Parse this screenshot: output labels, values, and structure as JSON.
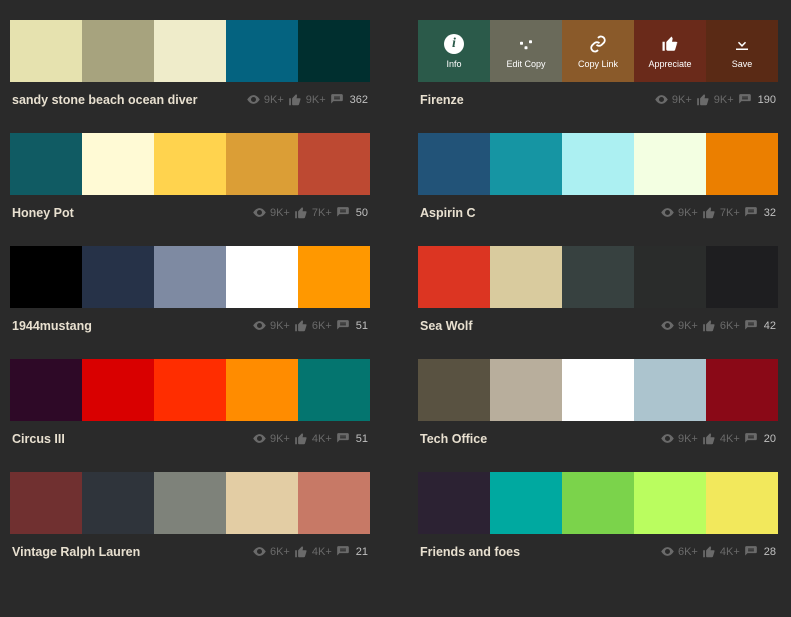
{
  "hover_actions": {
    "info": "Info",
    "edit_copy": "Edit Copy",
    "copy_link": "Copy Link",
    "appreciate": "Appreciate",
    "save": "Save",
    "overlay_bg": [
      "#2b5a4a",
      "#6a6a5a",
      "#8a5a2a",
      "#6a2a1a",
      "#5a2a15"
    ]
  },
  "palettes": [
    {
      "title": "sandy stone beach ocean diver",
      "colors": [
        "#e6e2af",
        "#a7a37e",
        "#efecca",
        "#046380",
        "#002f2f"
      ],
      "views": "9K+",
      "likes": "9K+",
      "comments": "362",
      "hover": false
    },
    {
      "title": "Firenze",
      "colors": [
        "#468966",
        "#fff0a5",
        "#ffb03b",
        "#b64926",
        "#8e2800"
      ],
      "views": "9K+",
      "likes": "9K+",
      "comments": "190",
      "hover": true
    },
    {
      "title": "Honey Pot",
      "colors": [
        "#105b63",
        "#fffad5",
        "#ffd34e",
        "#db9e36",
        "#bd4932"
      ],
      "views": "9K+",
      "likes": "7K+",
      "comments": "50",
      "hover": false
    },
    {
      "title": "Aspirin C",
      "colors": [
        "#225378",
        "#1695a3",
        "#acf0f2",
        "#f3ffe2",
        "#eb7f00"
      ],
      "views": "9K+",
      "likes": "7K+",
      "comments": "32",
      "hover": false
    },
    {
      "title": "1944mustang",
      "colors": [
        "#000000",
        "#263248",
        "#7e8aa2",
        "#ffffff",
        "#ff9800"
      ],
      "views": "9K+",
      "likes": "6K+",
      "comments": "51",
      "hover": false
    },
    {
      "title": "Sea Wolf",
      "colors": [
        "#dc3522",
        "#d9cb9e",
        "#374140",
        "#2a2c2b",
        "#1e1e20"
      ],
      "views": "9K+",
      "likes": "6K+",
      "comments": "42",
      "hover": false
    },
    {
      "title": "Circus III",
      "colors": [
        "#2e0927",
        "#d90000",
        "#ff2d00",
        "#ff8c00",
        "#04756f"
      ],
      "views": "9K+",
      "likes": "4K+",
      "comments": "51",
      "hover": false
    },
    {
      "title": "Tech Office",
      "colors": [
        "#595241",
        "#b8ae9c",
        "#ffffff",
        "#acc4ce",
        "#8a0917"
      ],
      "views": "9K+",
      "likes": "4K+",
      "comments": "20",
      "hover": false
    },
    {
      "title": "Vintage Ralph Lauren",
      "colors": [
        "#703030",
        "#2f343b",
        "#7e827a",
        "#e3cda4",
        "#c77966"
      ],
      "views": "6K+",
      "likes": "4K+",
      "comments": "21",
      "hover": false
    },
    {
      "title": "Friends and foes",
      "colors": [
        "#2c2233",
        "#00a9a0",
        "#7bd34b",
        "#bafd5f",
        "#f2e85c"
      ],
      "views": "6K+",
      "likes": "4K+",
      "comments": "28",
      "hover": false
    }
  ]
}
